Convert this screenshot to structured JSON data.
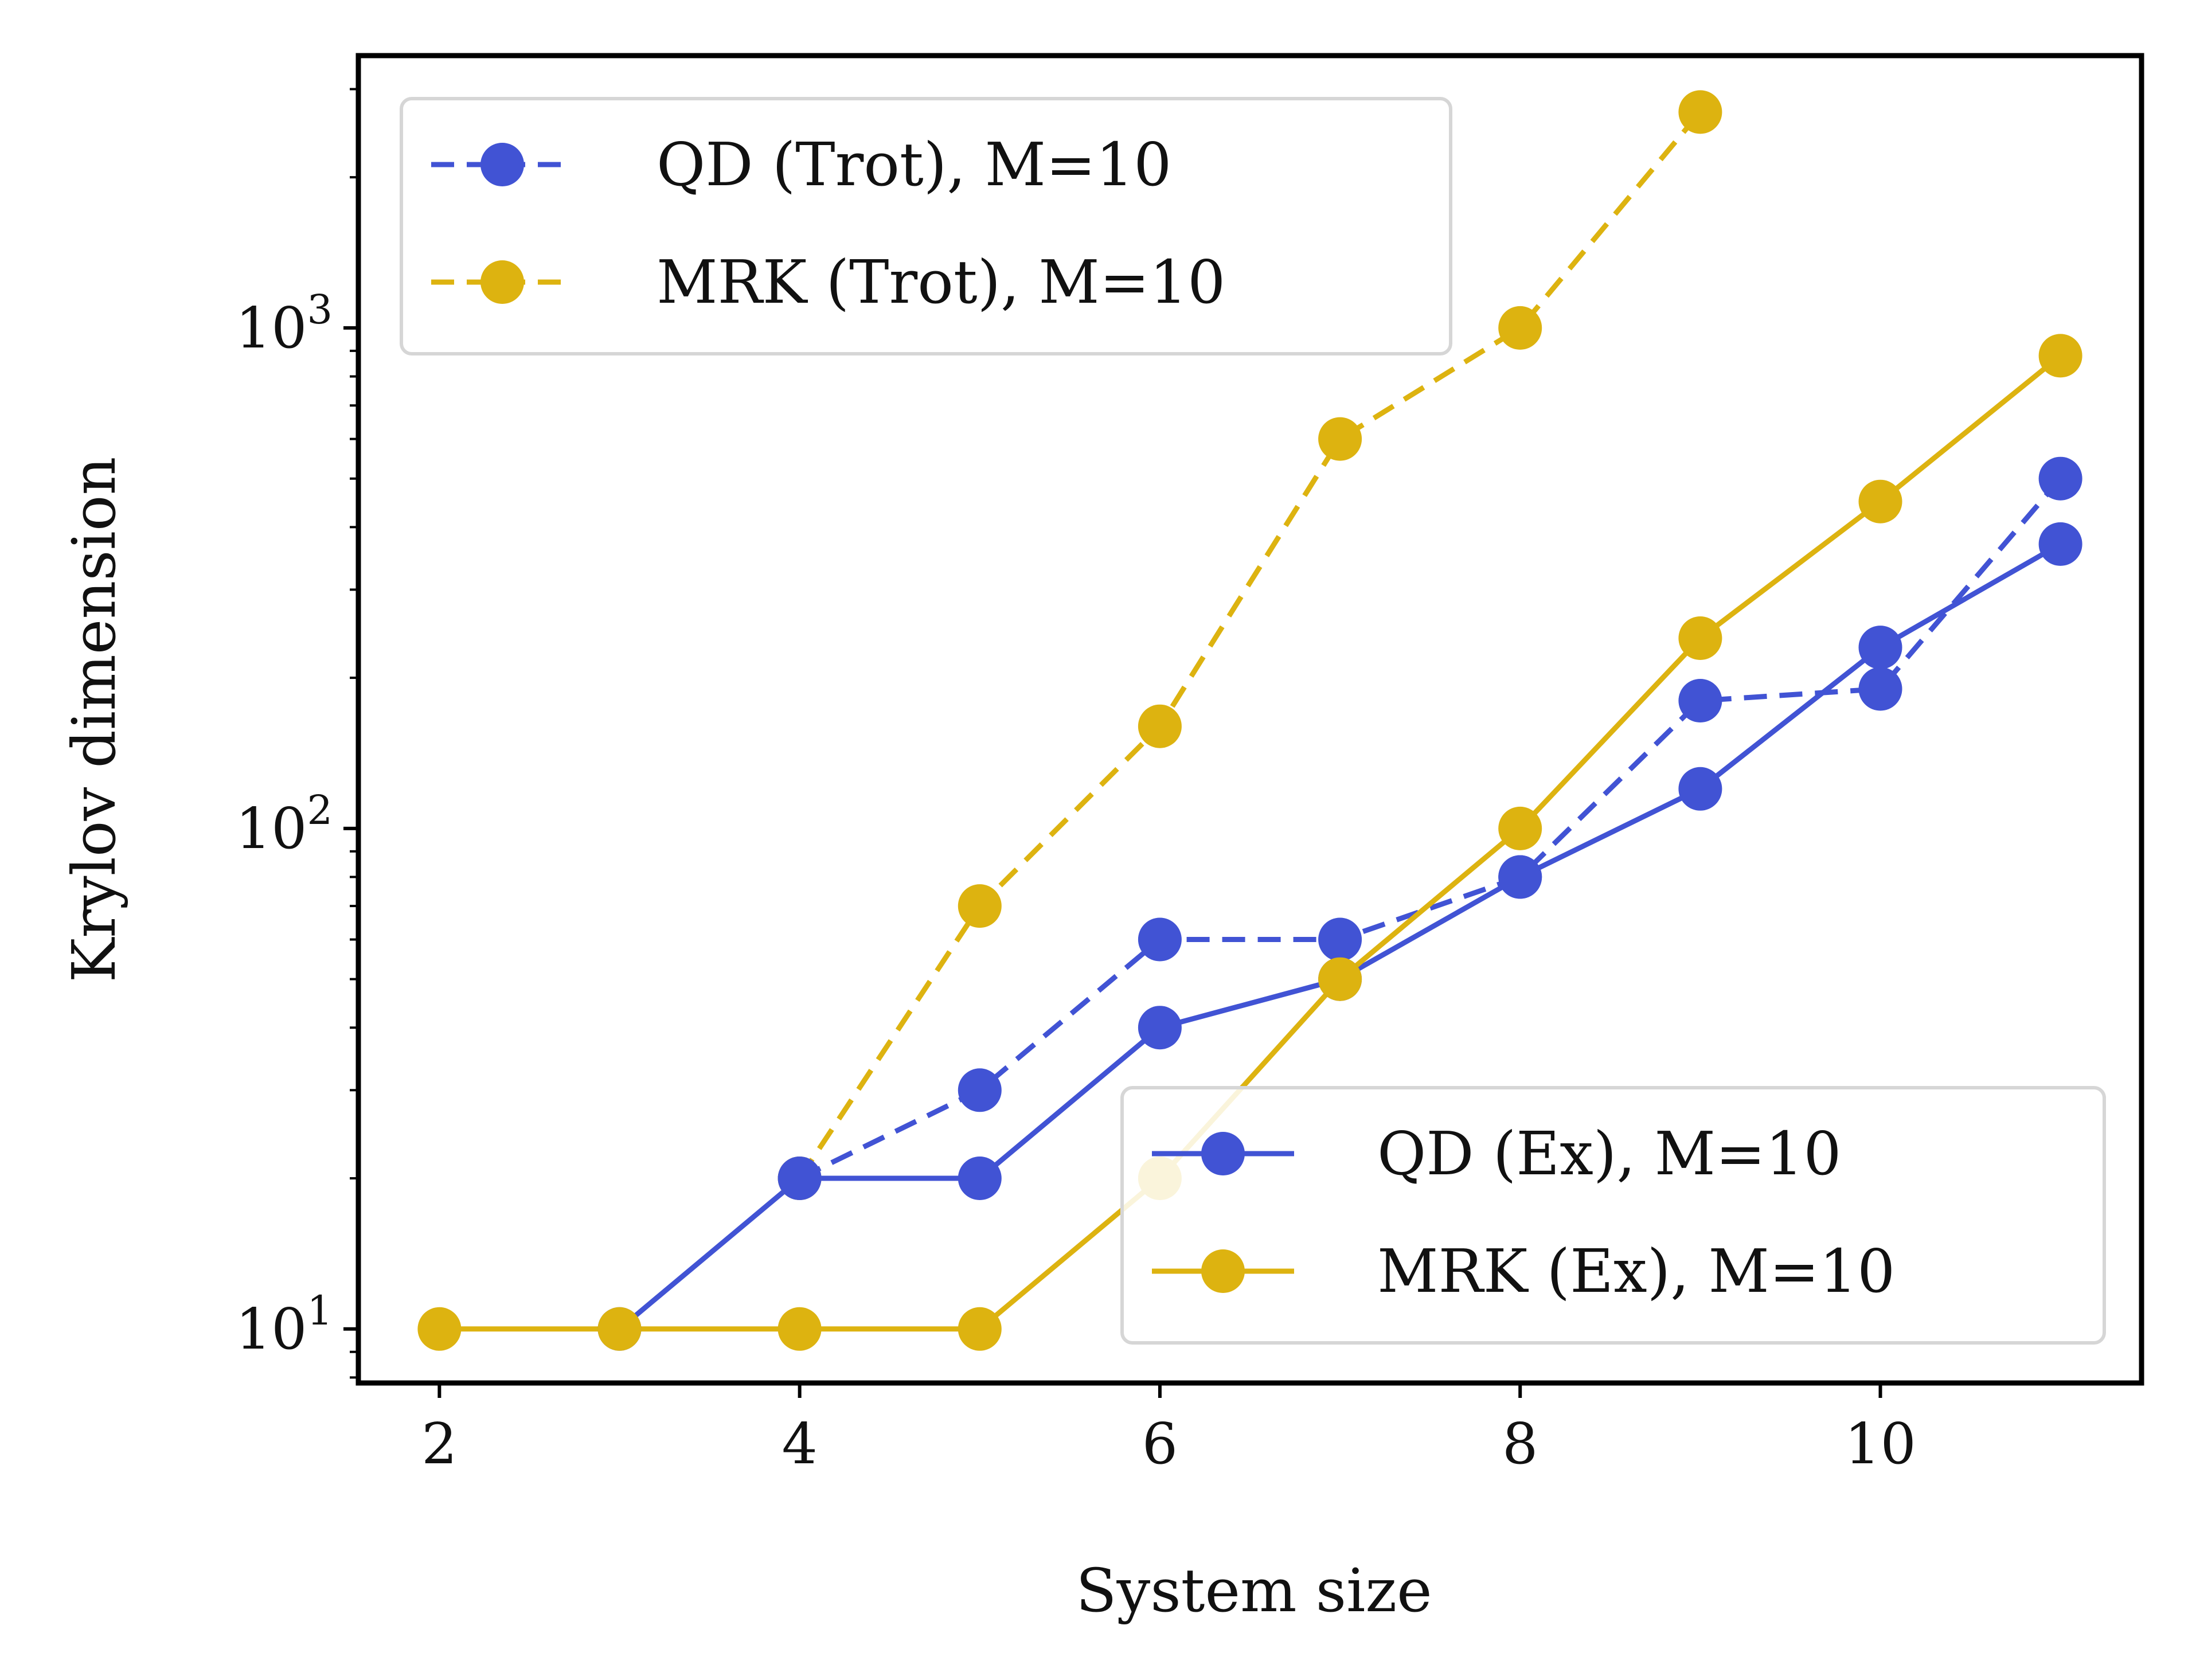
{
  "chart_data": {
    "type": "line",
    "title": "",
    "xlabel": "System size",
    "ylabel": "Krylov dimension",
    "xlim": [
      1.55,
      11.45
    ],
    "xticks": [
      2,
      4,
      6,
      8,
      10
    ],
    "ylim": [
      7.8,
      3500
    ],
    "yscale": "log",
    "yticks": [
      {
        "base": "10",
        "exp": "1",
        "value": 10
      },
      {
        "base": "10",
        "exp": "2",
        "value": 100
      },
      {
        "base": "10",
        "exp": "3",
        "value": 1000
      }
    ],
    "grid": false,
    "colors": {
      "qd": "#4153d4",
      "mrk": "#ddb310"
    },
    "series": [
      {
        "name": "QD (Trot), M=10",
        "style": "dashed",
        "color": "#4153d4",
        "x": [
          4,
          5,
          6,
          7,
          8,
          9,
          10,
          11
        ],
        "y": [
          20,
          30,
          60,
          60,
          80,
          180,
          190,
          500
        ]
      },
      {
        "name": "MRK (Trot), M=10",
        "style": "dashed",
        "color": "#ddb310",
        "x": [
          4,
          5,
          6,
          7,
          8,
          9
        ],
        "y": [
          20,
          70,
          160,
          600,
          1000,
          2700
        ]
      },
      {
        "name": "QD (Ex), M=10",
        "style": "solid",
        "color": "#4153d4",
        "x": [
          3,
          4,
          5,
          6,
          7,
          8,
          9,
          10,
          11
        ],
        "y": [
          10,
          20,
          20,
          40,
          50,
          80,
          120,
          230,
          370
        ]
      },
      {
        "name": "MRK (Ex), M=10",
        "style": "solid",
        "color": "#ddb310",
        "x": [
          2,
          3,
          4,
          5,
          6,
          7,
          8,
          9,
          10,
          11
        ],
        "y": [
          10,
          10,
          10,
          10,
          20,
          50,
          100,
          240,
          450,
          880
        ]
      }
    ],
    "legends": [
      {
        "placement": "top-left",
        "series": [
          0,
          1
        ]
      },
      {
        "placement": "bottom-right",
        "series": [
          2,
          3
        ]
      }
    ]
  }
}
